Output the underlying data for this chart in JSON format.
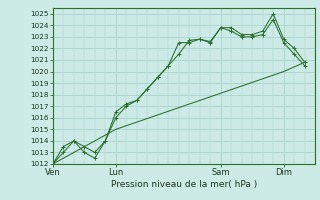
{
  "background_color": "#cceae6",
  "grid_color": "#aad4ce",
  "line_color": "#2d6e2d",
  "ylabel": "Pression niveau de la mer( hPa )",
  "ylim": [
    1012,
    1025.5
  ],
  "yticks": [
    1012,
    1013,
    1014,
    1015,
    1016,
    1017,
    1018,
    1019,
    1020,
    1021,
    1022,
    1023,
    1024,
    1025
  ],
  "xtick_labels": [
    "Ven",
    "Lun",
    "Sam",
    "Dim"
  ],
  "xtick_positions": [
    0,
    3,
    8,
    11
  ],
  "xlim": [
    0,
    12.5
  ],
  "series1": {
    "x": [
      0,
      0.5,
      1.0,
      1.5,
      2.0,
      2.5,
      3.0,
      3.5,
      4.0,
      4.5,
      5.0,
      5.5,
      6.0,
      6.5,
      7.0,
      7.5,
      8.0,
      8.5,
      9.0,
      9.5,
      10.0,
      10.5,
      11.0,
      11.5,
      12.0
    ],
    "y": [
      1012.0,
      1013.0,
      1014.0,
      1013.0,
      1012.5,
      1014.0,
      1016.0,
      1017.0,
      1017.5,
      1018.5,
      1019.5,
      1020.5,
      1022.5,
      1022.5,
      1022.8,
      1022.5,
      1023.8,
      1023.8,
      1023.2,
      1023.2,
      1023.5,
      1025.0,
      1022.8,
      1022.0,
      1020.8
    ]
  },
  "series2": {
    "x": [
      0,
      0.5,
      1.0,
      1.5,
      2.0,
      2.5,
      3.0,
      3.5,
      4.0,
      4.5,
      5.0,
      5.5,
      6.0,
      6.5,
      7.0,
      7.5,
      8.0,
      8.5,
      9.0,
      9.5,
      10.0,
      10.5,
      11.0,
      11.5,
      12.0
    ],
    "y": [
      1012.0,
      1013.5,
      1014.0,
      1013.5,
      1013.0,
      1014.0,
      1016.5,
      1017.2,
      1017.5,
      1018.5,
      1019.5,
      1020.5,
      1021.5,
      1022.7,
      1022.8,
      1022.6,
      1023.8,
      1023.5,
      1023.0,
      1023.0,
      1023.2,
      1024.5,
      1022.5,
      1021.5,
      1020.5
    ]
  },
  "series3": {
    "x": [
      0,
      3,
      11,
      12.0
    ],
    "y": [
      1012.0,
      1015.0,
      1020.0,
      1020.8
    ]
  },
  "ylabel_fontsize": 6.5,
  "xlabel_fontsize": 6.0,
  "ytick_fontsize": 5.2,
  "xtick_fontsize": 6.0
}
